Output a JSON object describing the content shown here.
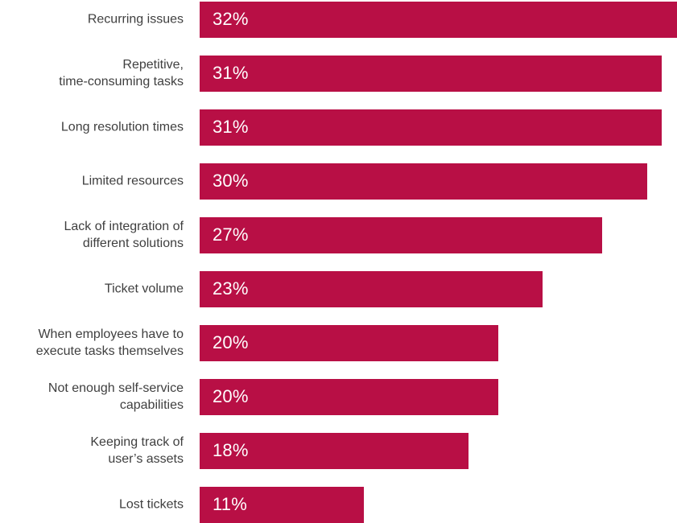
{
  "chart_data": {
    "type": "bar",
    "orientation": "horizontal",
    "categories": [
      "Recurring issues",
      "Repetitive,\ntime-consuming tasks",
      "Long resolution times",
      "Limited resources",
      "Lack of integration of\ndifferent solutions",
      "Ticket volume",
      "When employees have to\nexecute tasks themselves",
      "Not enough self-service\ncapabilities",
      "Keeping track of\nuser’s assets",
      "Lost tickets"
    ],
    "values": [
      32,
      31,
      31,
      30,
      27,
      23,
      20,
      20,
      18,
      11
    ],
    "value_labels": [
      "32%",
      "31%",
      "31%",
      "30%",
      "27%",
      "23%",
      "20%",
      "20%",
      "18%",
      "11%"
    ],
    "unit": "%",
    "xlim": [
      0,
      32
    ],
    "grid": false,
    "legend": "none",
    "title": "",
    "xlabel": "",
    "ylabel": ""
  },
  "colors": {
    "bar": "#b80f45",
    "label_text": "#3f3f3f",
    "value_text": "#ffffff",
    "background": "#ffffff"
  }
}
